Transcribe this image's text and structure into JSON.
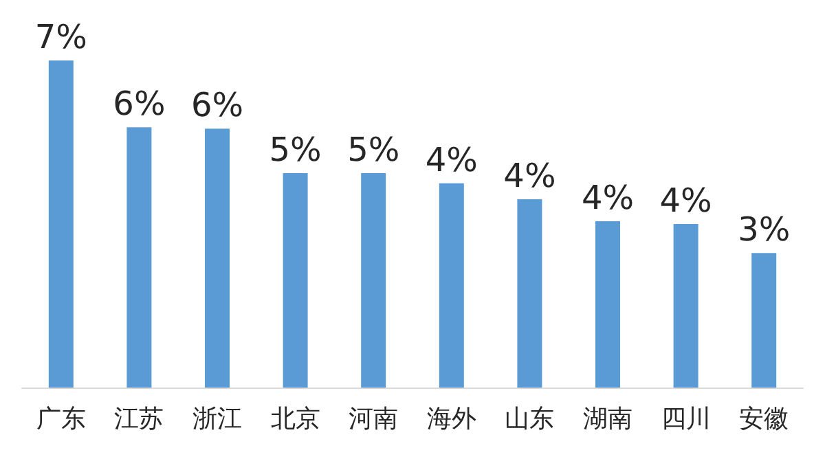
{
  "chart_data": {
    "type": "bar",
    "categories": [
      "广东",
      "江苏",
      "浙江",
      "北京",
      "河南",
      "海外",
      "山东",
      "湖南",
      "四川",
      "安徽"
    ],
    "values": [
      7.0,
      5.57,
      5.54,
      4.59,
      4.59,
      4.37,
      4.03,
      3.56,
      3.5,
      2.88
    ],
    "value_labels": [
      "7%",
      "6%",
      "6%",
      "5%",
      "5%",
      "4%",
      "4%",
      "4%",
      "4%",
      "3%"
    ],
    "color": "#5b9bd5"
  }
}
